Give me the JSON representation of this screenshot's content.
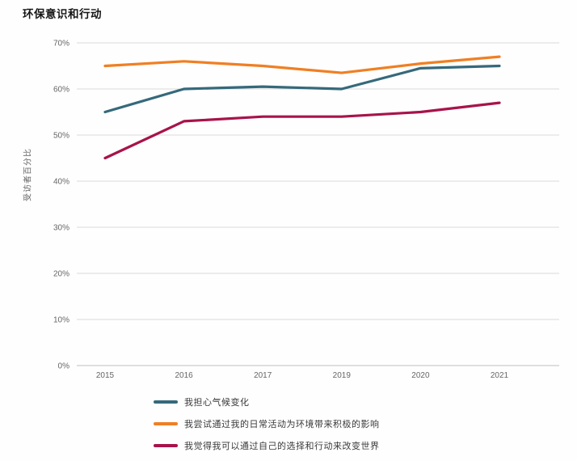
{
  "title": "环保意识和行动",
  "chart_data": {
    "type": "line",
    "title": "环保意识和行动",
    "ylabel": "受访者百分比",
    "xlabel": "",
    "categories": [
      "2015",
      "2016",
      "2017",
      "2019",
      "2020",
      "2021"
    ],
    "series": [
      {
        "name": "我担心气候变化",
        "color": "#35697B",
        "values": [
          55,
          60,
          60.5,
          60,
          64.5,
          65
        ]
      },
      {
        "name": "我尝试通过我的日常活动为环境带来积极的影响",
        "color": "#F07F23",
        "values": [
          65,
          66,
          65,
          63.5,
          65.5,
          67
        ]
      },
      {
        "name": "我觉得我可以通过自己的选择和行动来改变世界",
        "color": "#A8134A",
        "values": [
          45,
          53,
          54,
          54,
          55,
          57
        ]
      }
    ],
    "ylim": [
      0,
      70
    ],
    "yticks": [
      0,
      10,
      20,
      30,
      40,
      50,
      60,
      70
    ],
    "ytick_suffix": "%",
    "grid": true,
    "legend_position": "bottom",
    "colors": {
      "gridline": "#DBDBDB",
      "axis_line": "#BDBDBD",
      "tick_text": "#666666",
      "legend_text": "#3A3A3A",
      "title_text": "#161616"
    }
  }
}
